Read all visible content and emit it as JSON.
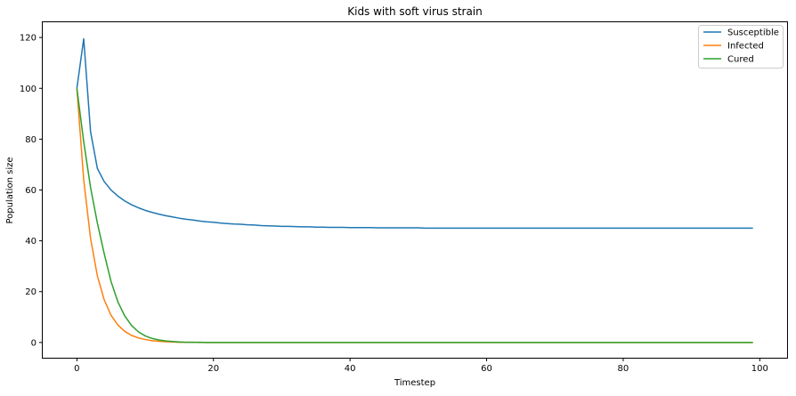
{
  "chart_data": {
    "type": "line",
    "title": "Kids with soft virus strain",
    "xlabel": "Timestep",
    "ylabel": "Population size",
    "xlim": [
      -5,
      104
    ],
    "ylim": [
      -6,
      126
    ],
    "xticks": [
      0,
      20,
      40,
      60,
      80,
      100
    ],
    "yticks": [
      0,
      20,
      40,
      60,
      80,
      100,
      120
    ],
    "grid": false,
    "legend_position": "top-right",
    "x": {
      "start": 0,
      "end": 99,
      "step": 1
    },
    "series": [
      {
        "name": "Susceptible",
        "color": "#1f77b4",
        "values": [
          100,
          119.5,
          83,
          68.5,
          63.3,
          60,
          57.6,
          55.7,
          54.2,
          53,
          52,
          51.2,
          50.5,
          49.9,
          49.4,
          48.9,
          48.5,
          48.2,
          47.8,
          47.5,
          47.3,
          47,
          46.8,
          46.6,
          46.5,
          46.3,
          46.2,
          46,
          45.9,
          45.8,
          45.7,
          45.7,
          45.6,
          45.5,
          45.5,
          45.4,
          45.4,
          45.3,
          45.3,
          45.3,
          45.2,
          45.2,
          45.2,
          45.2,
          45.1,
          45.1,
          45.1,
          45.1,
          45.1,
          45.1,
          45.1,
          45,
          45,
          45,
          45,
          45,
          45,
          45,
          45,
          45,
          45,
          45,
          45,
          45,
          45,
          45,
          45,
          45,
          45,
          45,
          45,
          45,
          45,
          45,
          45,
          45,
          45,
          45,
          45,
          45,
          45,
          45,
          45,
          45,
          45,
          45,
          45,
          45,
          45,
          45,
          45,
          45,
          45,
          45,
          45,
          45,
          45,
          45,
          45,
          45
        ]
      },
      {
        "name": "Infected",
        "color": "#ff7f0e",
        "values": [
          100,
          64,
          41,
          26.2,
          16.8,
          10.7,
          6.9,
          4.4,
          2.8,
          1.8,
          1.2,
          0.7,
          0.5,
          0.3,
          0.2,
          0.1,
          0.1,
          0.1,
          0,
          0,
          0,
          0,
          0,
          0,
          0,
          0,
          0,
          0,
          0,
          0,
          0,
          0,
          0,
          0,
          0,
          0,
          0,
          0,
          0,
          0,
          0,
          0,
          0,
          0,
          0,
          0,
          0,
          0,
          0,
          0,
          0,
          0,
          0,
          0,
          0,
          0,
          0,
          0,
          0,
          0,
          0,
          0,
          0,
          0,
          0,
          0,
          0,
          0,
          0,
          0,
          0,
          0,
          0,
          0,
          0,
          0,
          0,
          0,
          0,
          0,
          0,
          0,
          0,
          0,
          0,
          0,
          0,
          0,
          0,
          0,
          0,
          0,
          0,
          0,
          0,
          0,
          0,
          0,
          0,
          0
        ]
      },
      {
        "name": "Cured",
        "color": "#2ca02c",
        "values": [
          100,
          79,
          61,
          47,
          35,
          24,
          16,
          10.5,
          6.7,
          4.2,
          2.6,
          1.6,
          1,
          0.6,
          0.4,
          0.2,
          0.1,
          0.1,
          0.1,
          0,
          0,
          0,
          0,
          0,
          0,
          0,
          0,
          0,
          0,
          0,
          0,
          0,
          0,
          0,
          0,
          0,
          0,
          0,
          0,
          0,
          0,
          0,
          0,
          0,
          0,
          0,
          0,
          0,
          0,
          0,
          0,
          0,
          0,
          0,
          0,
          0,
          0,
          0,
          0,
          0,
          0,
          0,
          0,
          0,
          0,
          0,
          0,
          0,
          0,
          0,
          0,
          0,
          0,
          0,
          0,
          0,
          0,
          0,
          0,
          0,
          0,
          0,
          0,
          0,
          0,
          0,
          0,
          0,
          0,
          0,
          0,
          0,
          0,
          0,
          0,
          0,
          0,
          0,
          0,
          0
        ]
      }
    ]
  }
}
